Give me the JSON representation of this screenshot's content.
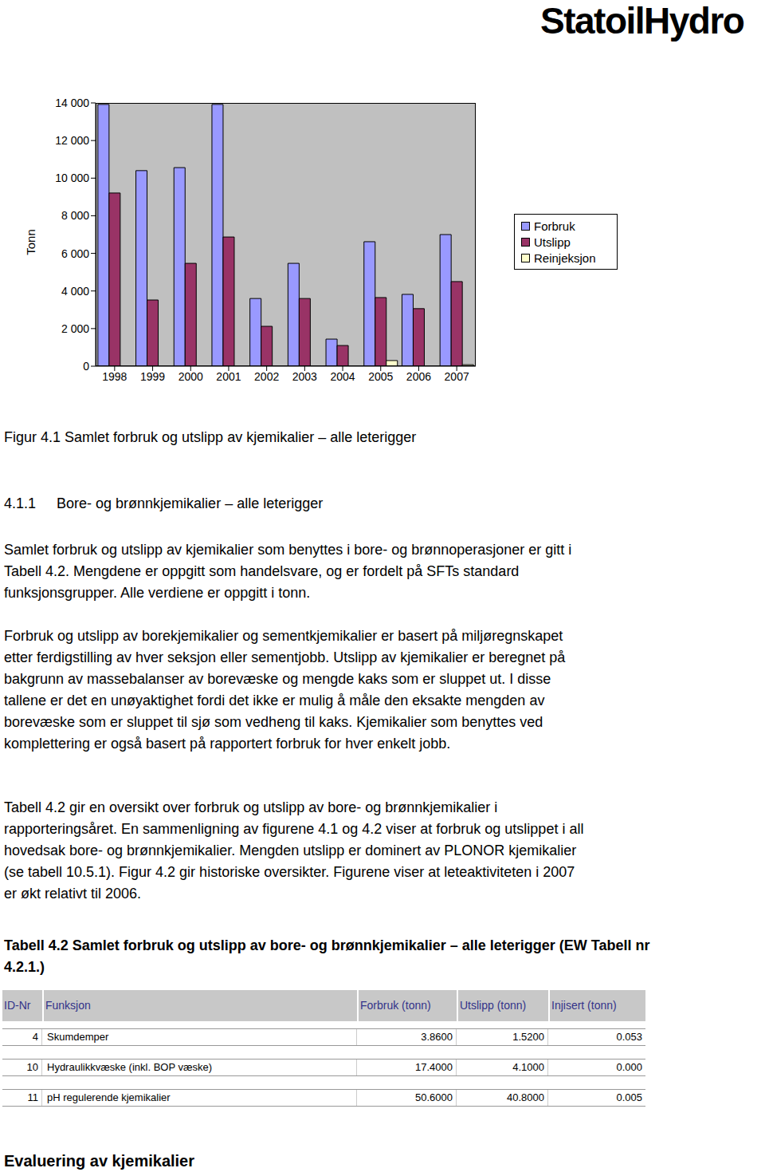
{
  "header": {
    "logo": "StatoilHydro"
  },
  "chart_data": {
    "type": "bar",
    "y_label": "Tonn",
    "categories": [
      "1998",
      "1999",
      "2000",
      "2001",
      "2002",
      "2003",
      "2004",
      "2005",
      "2006",
      "2007"
    ],
    "series": [
      {
        "name": "Forbruk",
        "color": "#9999ff",
        "values": [
          13920,
          10400,
          10560,
          13920,
          3600,
          5470,
          1440,
          6620,
          3820,
          7000
        ]
      },
      {
        "name": "Utslipp",
        "color": "#993366",
        "values": [
          9210,
          3520,
          5470,
          6870,
          2120,
          3600,
          1100,
          3650,
          3060,
          4500
        ]
      },
      {
        "name": "Reinjeksjon",
        "color": "#ffffcc",
        "values": [
          0,
          0,
          0,
          0,
          0,
          0,
          0,
          300,
          0,
          80
        ]
      }
    ],
    "ylim": [
      0,
      14000
    ],
    "yticks": [
      0,
      {
        "value": 2000,
        "label": "2 000"
      },
      {
        "value": 4000,
        "label": "4 000"
      },
      {
        "value": 6000,
        "label": "6 000"
      },
      {
        "value": 8000,
        "label": "8 000"
      },
      {
        "value": 10000,
        "label": "10 000"
      },
      {
        "value": 12000,
        "label": "12 000"
      },
      {
        "value": 14000,
        "label": "14 000"
      }
    ],
    "grid": false,
    "legend": "right"
  },
  "caption": "Figur 4.1 Samlet forbruk og utslipp av kjemikalier – alle leterigger",
  "section": {
    "number": "4.1.1",
    "title": "Bore- og brønnkjemikalier – alle leterigger"
  },
  "paragraphs": [
    [
      "Samlet forbruk og utslipp av kjemikalier som benyttes i bore- og brønnoperasjoner er gitt i",
      "Tabell 4.2. Mengdene er oppgitt som handelsvare, og er fordelt på SFTs standard",
      "funksjonsgrupper. Alle verdiene er oppgitt i tonn."
    ],
    [
      "Forbruk og utslipp av borekjemikalier og sementkjemikalier er basert på miljøregnskapet",
      "etter ferdigstilling av hver seksjon eller sementjobb. Utslipp av kjemikalier er beregnet på",
      "bakgrunn av massebalanser av borevæske og mengde kaks som er sluppet ut. I disse",
      "tallene er det en unøyaktighet fordi det ikke er mulig å måle den eksakte mengden av",
      "borevæske som er sluppet til sjø som vedheng til kaks. Kjemikalier som benyttes ved",
      "komplettering er også basert på rapportert forbruk for hver enkelt jobb."
    ],
    [
      "Tabell 4.2 gir en oversikt over forbruk og utslipp av bore- og brønnkjemikalier i",
      "rapporteringsåret. En sammenligning av figurene 4.1 og 4.2 viser at forbruk og utslippet i all",
      "hovedsak bore- og brønnkjemikalier. Mengden utslipp er dominert av PLONOR kjemikalier",
      "(se tabell 10.5.1). Figur 4.2 gir historiske oversikter.  Figurene viser at leteaktiviteten i 2007",
      "er økt relativt til 2006."
    ]
  ],
  "table": {
    "title": [
      "Tabell 4.2 Samlet forbruk og utslipp av bore- og brønnkjemikalier – alle leterigger (EW Tabell nr",
      "4.2.1.)"
    ],
    "columns": [
      "ID-Nr",
      "Funksjon",
      "Forbruk (tonn)",
      "Utslipp (tonn)",
      "Injisert (tonn)"
    ],
    "rows": [
      [
        "4",
        "Skumdemper",
        "3.8600",
        "1.5200",
        "0.053"
      ],
      [
        "10",
        "Hydraulikkvæske (inkl. BOP væske)",
        "17.4000",
        "4.1000",
        "0.000"
      ],
      [
        "11",
        "pH regulerende kjemikalier",
        "50.6000",
        "40.8000",
        "0.005"
      ]
    ]
  },
  "footer_heading": "Evaluering av kjemikalier"
}
